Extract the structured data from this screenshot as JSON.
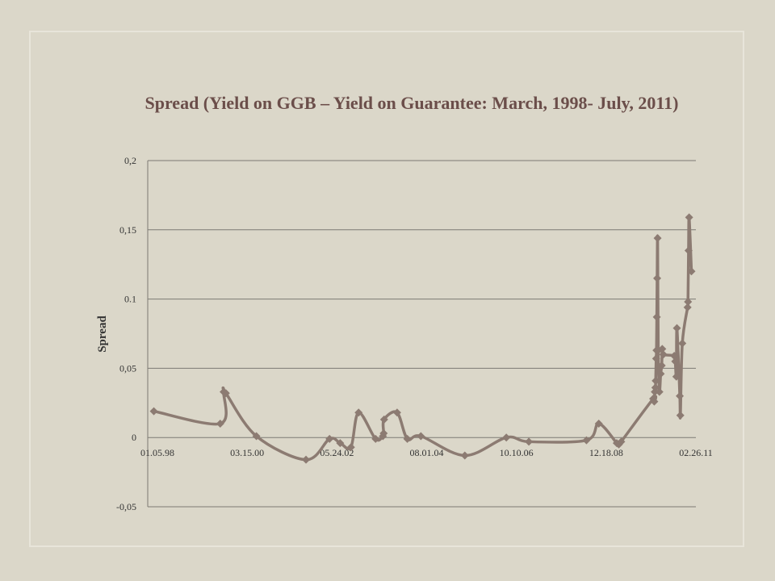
{
  "chart_data": {
    "type": "line",
    "title": "Spread (Yield on GGB – Yield on Guarantee: March, 1998- July, 2011)",
    "xlabel": "",
    "ylabel": "Spread",
    "x_ticks": [
      "01.05.98",
      "03.15.00",
      "05.24.02",
      "08.01.04",
      "10.10.06",
      "12.18.08",
      "02.26.11"
    ],
    "y_ticks": [
      "-0,05",
      "0",
      "0,05",
      "0.1",
      "0,15",
      "0,2"
    ],
    "ylim": [
      -0.05,
      0.2
    ],
    "xlim": [
      "1998-01-05",
      "2011-07-15"
    ],
    "grid": "horizontal",
    "legend": "none",
    "series_color": "#8c7b72",
    "series": [
      {
        "values": [
          {
            "x": "1998-03-01",
            "y": 0.019
          },
          {
            "x": "1999-10-20",
            "y": 0.01
          },
          {
            "x": "1999-11-20",
            "y": 0.033
          },
          {
            "x": "1999-12-10",
            "y": 0.032
          },
          {
            "x": "2000-09-10",
            "y": 0.001
          },
          {
            "x": "2001-12-01",
            "y": -0.016
          },
          {
            "x": "2002-07-01",
            "y": -0.001
          },
          {
            "x": "2002-10-05",
            "y": -0.004
          },
          {
            "x": "2003-01-10",
            "y": -0.007
          },
          {
            "x": "2003-03-20",
            "y": 0.018
          },
          {
            "x": "2003-08-20",
            "y": -0.001
          },
          {
            "x": "2003-10-25",
            "y": 0.001
          },
          {
            "x": "2003-11-01",
            "y": 0.003
          },
          {
            "x": "2003-11-05",
            "y": 0.013
          },
          {
            "x": "2004-03-01",
            "y": 0.018
          },
          {
            "x": "2004-06-01",
            "y": -0.001
          },
          {
            "x": "2004-10-01",
            "y": 0.001
          },
          {
            "x": "2005-11-01",
            "y": -0.013
          },
          {
            "x": "2006-11-10",
            "y": 0.0
          },
          {
            "x": "2007-06-01",
            "y": -0.003
          },
          {
            "x": "2008-11-01",
            "y": -0.002
          },
          {
            "x": "2009-02-20",
            "y": 0.01
          },
          {
            "x": "2009-08-01",
            "y": -0.004
          },
          {
            "x": "2009-08-20",
            "y": -0.005
          },
          {
            "x": "2009-09-10",
            "y": -0.003
          },
          {
            "x": "2010-06-25",
            "y": 0.028
          },
          {
            "x": "2010-07-05",
            "y": 0.026
          },
          {
            "x": "2010-07-10",
            "y": 0.033
          },
          {
            "x": "2010-07-15",
            "y": 0.036
          },
          {
            "x": "2010-07-18",
            "y": 0.041
          },
          {
            "x": "2010-07-22",
            "y": 0.057
          },
          {
            "x": "2010-07-25",
            "y": 0.063
          },
          {
            "x": "2010-07-28",
            "y": 0.087
          },
          {
            "x": "2010-07-31",
            "y": 0.115
          },
          {
            "x": "2010-08-04",
            "y": 0.144
          },
          {
            "x": "2010-08-10",
            "y": 0.063
          },
          {
            "x": "2010-08-20",
            "y": 0.033
          },
          {
            "x": "2010-09-01",
            "y": 0.046
          },
          {
            "x": "2010-09-10",
            "y": 0.052
          },
          {
            "x": "2010-09-15",
            "y": 0.064
          },
          {
            "x": "2010-09-25",
            "y": 0.06
          },
          {
            "x": "2011-01-01",
            "y": 0.059
          },
          {
            "x": "2011-01-10",
            "y": 0.055
          },
          {
            "x": "2011-01-20",
            "y": 0.044
          },
          {
            "x": "2011-01-25",
            "y": 0.079
          },
          {
            "x": "2011-02-20",
            "y": 0.03
          },
          {
            "x": "2011-02-25",
            "y": 0.016
          },
          {
            "x": "2011-03-15",
            "y": 0.068
          },
          {
            "x": "2011-05-01",
            "y": 0.094
          },
          {
            "x": "2011-05-05",
            "y": 0.098
          },
          {
            "x": "2011-05-10",
            "y": 0.135
          },
          {
            "x": "2011-05-15",
            "y": 0.159
          },
          {
            "x": "2011-06-05",
            "y": 0.12
          }
        ]
      }
    ]
  }
}
